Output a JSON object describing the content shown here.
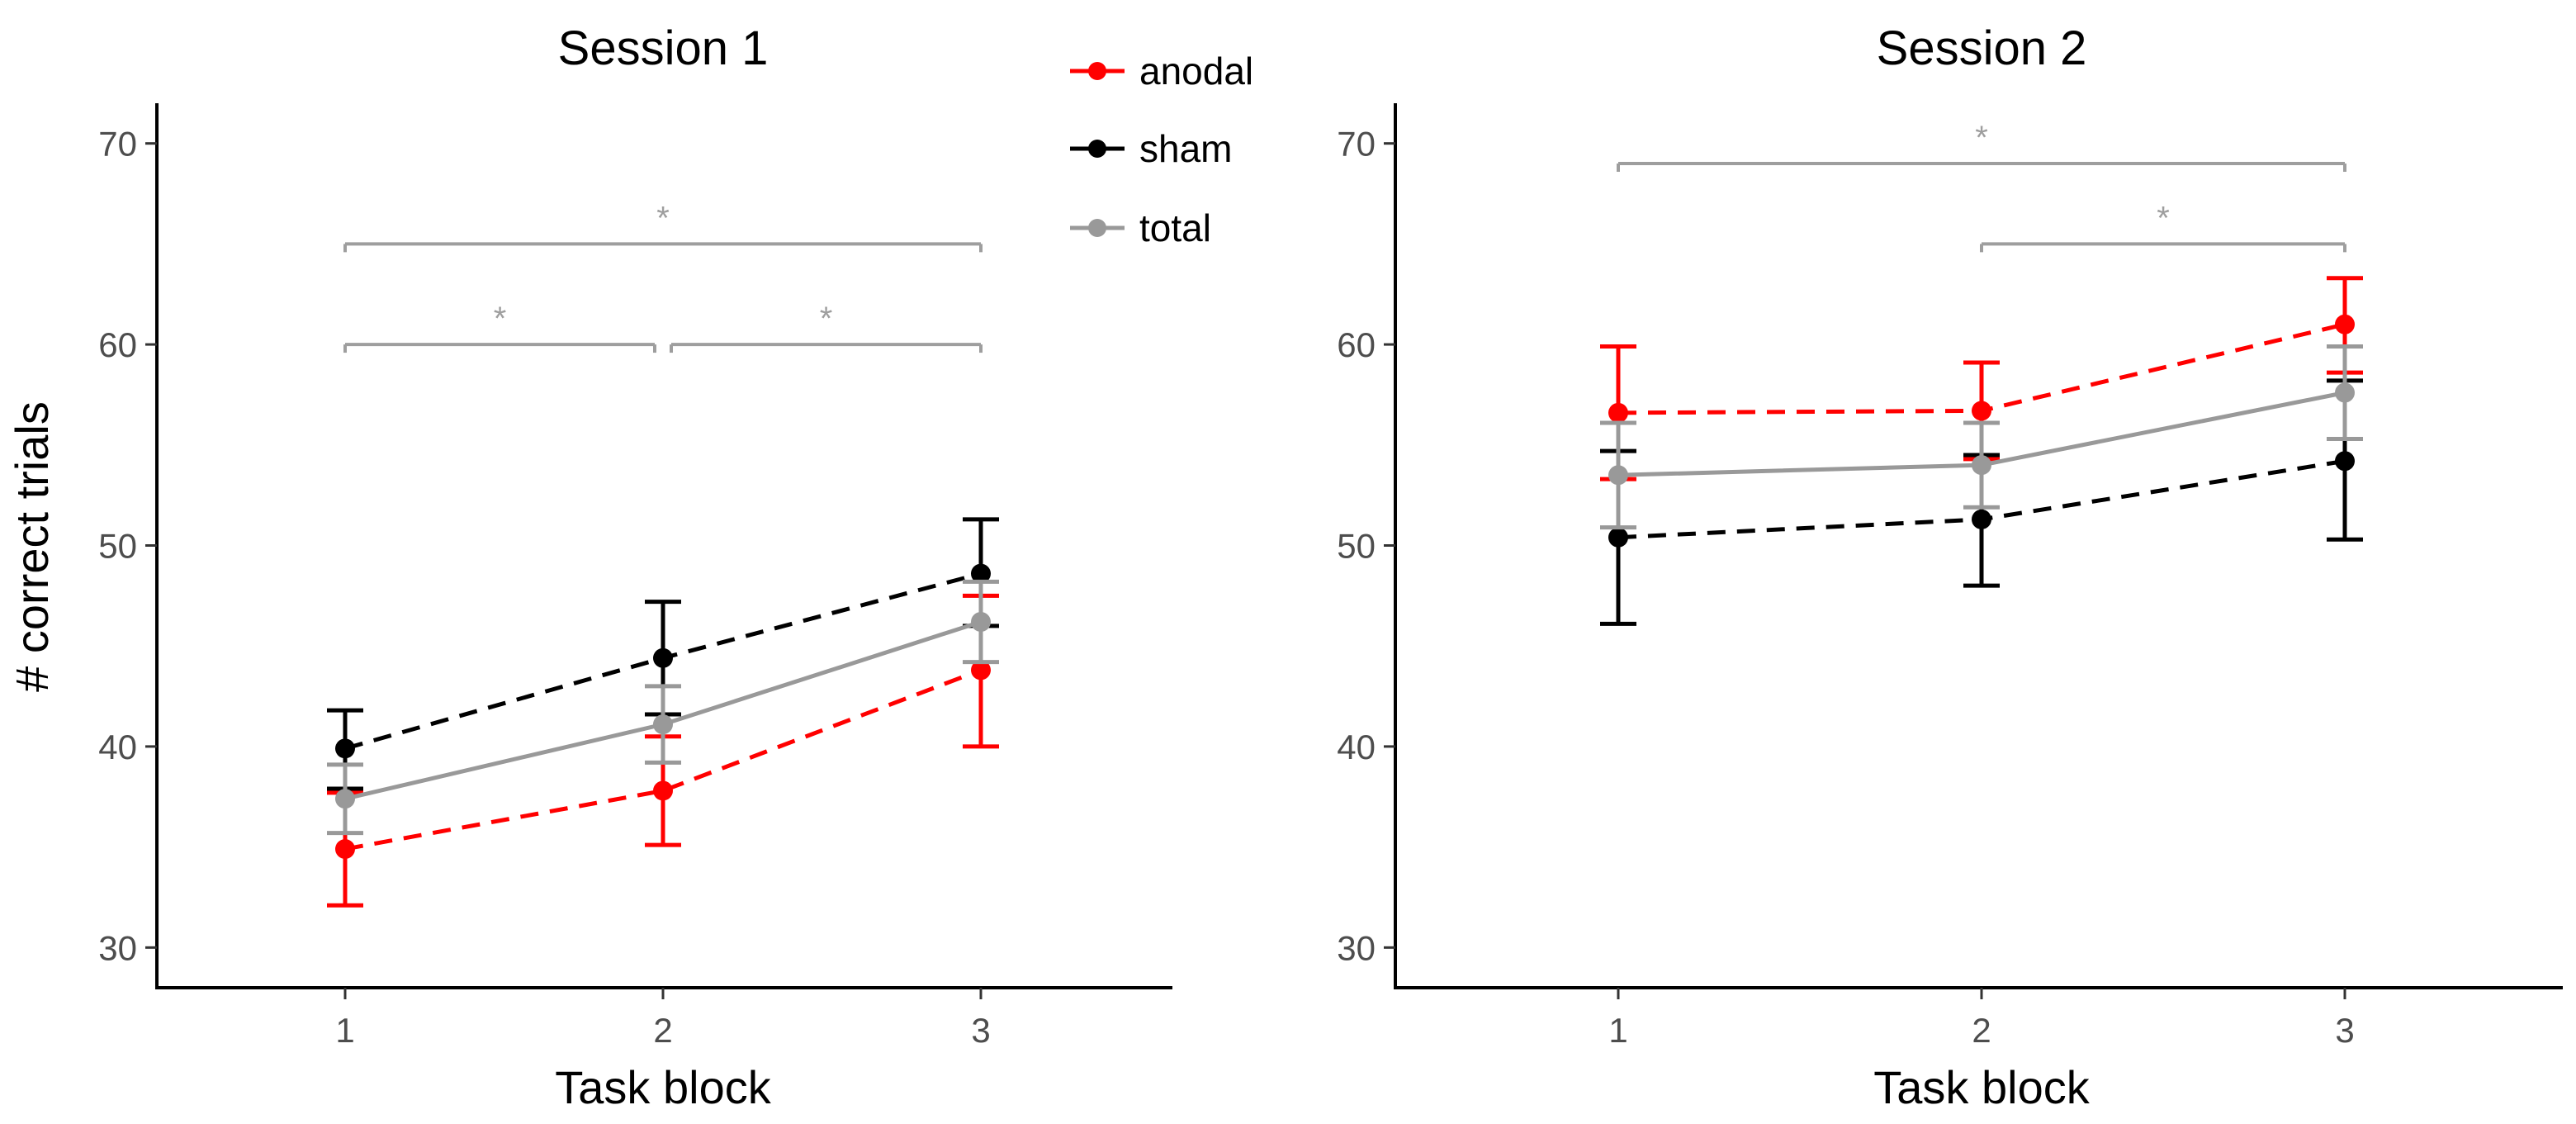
{
  "chart_data": [
    {
      "type": "line",
      "title": "Session 1",
      "xlabel": "Task block",
      "ylabel": "# correct trials",
      "categories": [
        "1",
        "2",
        "3"
      ],
      "ylim": [
        28,
        72
      ],
      "yticks": [
        30,
        40,
        50,
        60,
        70
      ],
      "series": [
        {
          "name": "anodal",
          "color": "#ff0000",
          "dashed": true,
          "values": [
            34.9,
            37.8,
            43.8
          ],
          "err_low": [
            32.1,
            35.1,
            40.0
          ],
          "err_high": [
            37.7,
            40.5,
            47.5
          ]
        },
        {
          "name": "sham",
          "color": "#000000",
          "dashed": true,
          "values": [
            39.9,
            44.4,
            48.6
          ],
          "err_low": [
            37.9,
            41.6,
            46.0
          ],
          "err_high": [
            41.8,
            47.2,
            51.3
          ]
        },
        {
          "name": "total",
          "color": "#999999",
          "dashed": false,
          "values": [
            37.4,
            41.1,
            46.2
          ],
          "err_low": [
            35.7,
            39.2,
            44.2
          ],
          "err_high": [
            39.1,
            43.0,
            48.2
          ]
        }
      ],
      "significance": [
        {
          "from": 1,
          "to": 3,
          "y": 65,
          "label": "*"
        },
        {
          "from": 1,
          "to": 2,
          "y": 60,
          "label": "*"
        },
        {
          "from": 2,
          "to": 3,
          "y": 60,
          "label": "*"
        }
      ]
    },
    {
      "type": "line",
      "title": "Session 2",
      "xlabel": "Task block",
      "ylabel": "",
      "categories": [
        "1",
        "2",
        "3"
      ],
      "ylim": [
        28,
        72
      ],
      "yticks": [
        30,
        40,
        50,
        60,
        70
      ],
      "series": [
        {
          "name": "anodal",
          "color": "#ff0000",
          "dashed": true,
          "values": [
            56.6,
            56.7,
            61.0
          ],
          "err_low": [
            53.3,
            54.3,
            58.6
          ],
          "err_high": [
            59.9,
            59.1,
            63.3
          ]
        },
        {
          "name": "sham",
          "color": "#000000",
          "dashed": true,
          "values": [
            50.4,
            51.3,
            54.2
          ],
          "err_low": [
            46.1,
            48.0,
            50.3
          ],
          "err_high": [
            54.7,
            54.5,
            58.2
          ]
        },
        {
          "name": "total",
          "color": "#999999",
          "dashed": false,
          "values": [
            53.5,
            54.0,
            57.6
          ],
          "err_low": [
            50.9,
            51.9,
            55.3
          ],
          "err_high": [
            56.1,
            56.1,
            59.9
          ]
        }
      ],
      "significance": [
        {
          "from": 1,
          "to": 3,
          "y": 69,
          "label": "*"
        },
        {
          "from": 2,
          "to": 3,
          "y": 65,
          "label": "*"
        }
      ]
    }
  ],
  "legend": {
    "placement": "top-center",
    "items": [
      {
        "label": "anodal",
        "color": "#ff0000"
      },
      {
        "label": "sham",
        "color": "#000000"
      },
      {
        "label": "total",
        "color": "#999999"
      }
    ]
  }
}
